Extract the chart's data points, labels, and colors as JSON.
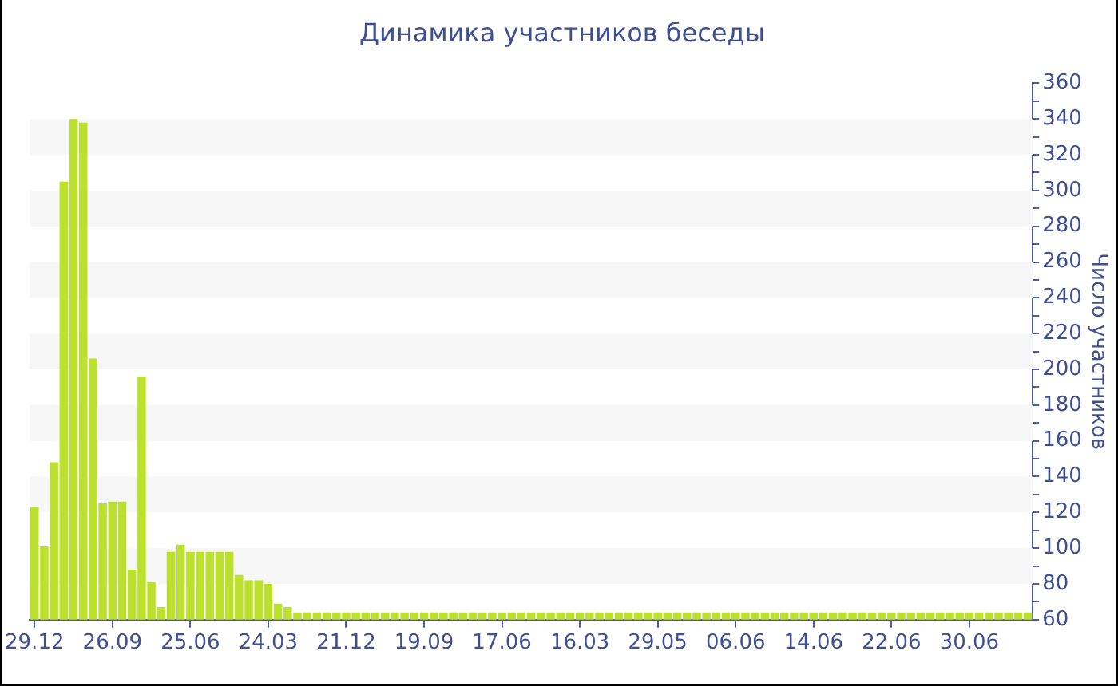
{
  "chart_data": {
    "type": "bar",
    "title": "Динамика участников беседы",
    "ylabel": "Число участников",
    "categories": [
      "29.12",
      null,
      null,
      null,
      null,
      null,
      null,
      null,
      "26.09",
      null,
      null,
      null,
      null,
      null,
      null,
      null,
      "25.06",
      null,
      null,
      null,
      null,
      null,
      null,
      null,
      "24.03",
      null,
      null,
      null,
      null,
      null,
      null,
      null,
      "21.12",
      null,
      null,
      null,
      null,
      null,
      null,
      null,
      "19.09",
      null,
      null,
      null,
      null,
      null,
      null,
      null,
      "17.06",
      null,
      null,
      null,
      null,
      null,
      null,
      null,
      "16.03",
      null,
      null,
      null,
      null,
      null,
      null,
      null,
      "29.05",
      null,
      null,
      null,
      null,
      null,
      null,
      null,
      "06.06",
      null,
      null,
      null,
      null,
      null,
      null,
      null,
      "14.06",
      null,
      null,
      null,
      null,
      null,
      null,
      null,
      "22.06",
      null,
      null,
      null,
      null,
      null,
      null,
      null,
      "30.06",
      null,
      null,
      null,
      null,
      null,
      null
    ],
    "values": [
      123,
      101,
      148,
      305,
      340,
      338,
      206,
      125,
      126,
      126,
      88,
      196,
      81,
      67,
      98,
      102,
      98,
      98,
      98,
      98,
      98,
      85,
      82,
      82,
      80,
      69,
      67,
      64,
      64,
      64,
      64,
      64,
      64,
      64,
      64,
      64,
      64,
      64,
      64,
      64,
      64,
      64,
      64,
      64,
      64,
      64,
      64,
      64,
      64,
      64,
      64,
      64,
      64,
      64,
      64,
      64,
      64,
      64,
      64,
      64,
      64,
      64,
      64,
      64,
      64,
      64,
      64,
      64,
      64,
      64,
      64,
      64,
      64,
      64,
      64,
      64,
      64,
      64,
      64,
      64,
      64,
      64,
      64,
      64,
      64,
      64,
      64,
      64,
      64,
      64,
      64,
      64,
      64,
      64,
      64,
      64,
      64,
      64,
      64,
      64,
      64,
      64,
      64
    ],
    "color": "#bce02e",
    "ylim": [
      60,
      360
    ],
    "yticks": [
      60,
      {
        "value": 70,
        "label": null
      },
      80,
      {
        "value": 90,
        "label": null
      },
      100,
      {
        "value": 110,
        "label": null
      },
      120,
      {
        "value": 130,
        "label": null
      },
      140,
      {
        "value": 150,
        "label": null
      },
      160,
      {
        "value": 170,
        "label": null
      },
      180,
      {
        "value": 190,
        "label": null
      },
      200,
      {
        "value": 210,
        "label": null
      },
      220,
      {
        "value": 230,
        "label": null
      },
      240,
      {
        "value": 250,
        "label": null
      },
      260,
      {
        "value": 270,
        "label": null
      },
      280,
      {
        "value": 290,
        "label": null
      },
      300,
      {
        "value": 310,
        "label": null
      },
      320,
      {
        "value": 330,
        "label": null
      },
      340,
      {
        "value": 350,
        "label": null
      },
      360
    ],
    "bands": [
      {
        "axis": "y",
        "from": 80,
        "to": 100,
        "color": "#f7f7f7"
      },
      {
        "axis": "y",
        "from": 120,
        "to": 140,
        "color": "#f7f7f7"
      },
      {
        "axis": "y",
        "from": 160,
        "to": 180,
        "color": "#f7f7f7"
      },
      {
        "axis": "y",
        "from": 200,
        "to": 220,
        "color": "#f7f7f7"
      },
      {
        "axis": "y",
        "from": 240,
        "to": 260,
        "color": "#f7f7f7"
      },
      {
        "axis": "y",
        "from": 280,
        "to": 300,
        "color": "#f7f7f7"
      },
      {
        "axis": "y",
        "from": 320,
        "to": 340,
        "color": "#f7f7f7"
      }
    ]
  }
}
